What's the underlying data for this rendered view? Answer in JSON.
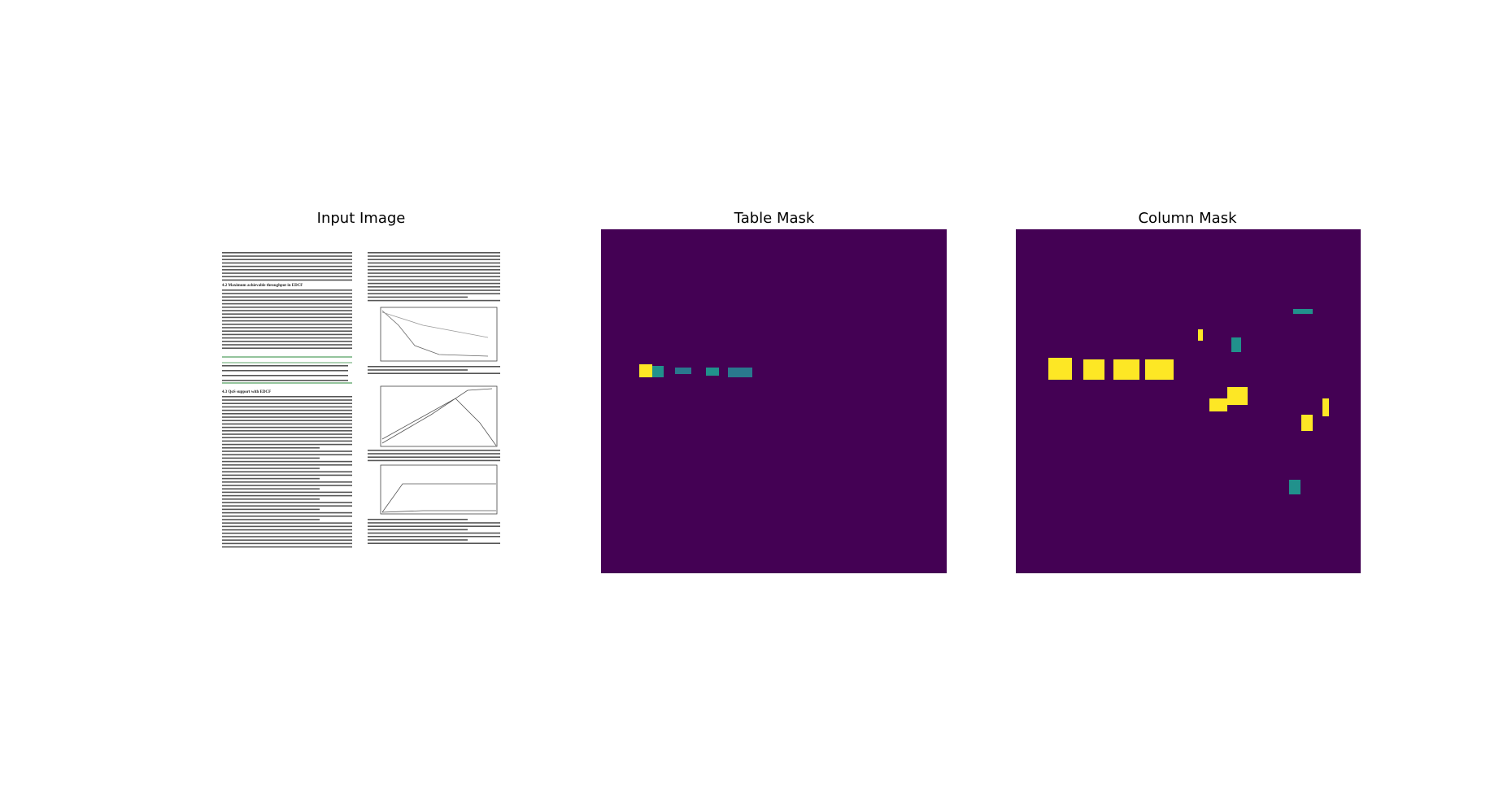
{
  "panels": [
    {
      "title": "Input Image",
      "headings": [
        "4.2 Maximum achievable throughput in EDCF",
        "4.3 QoS support with EDCF"
      ]
    },
    {
      "title": "Table Mask"
    },
    {
      "title": "Column Mask"
    }
  ]
}
